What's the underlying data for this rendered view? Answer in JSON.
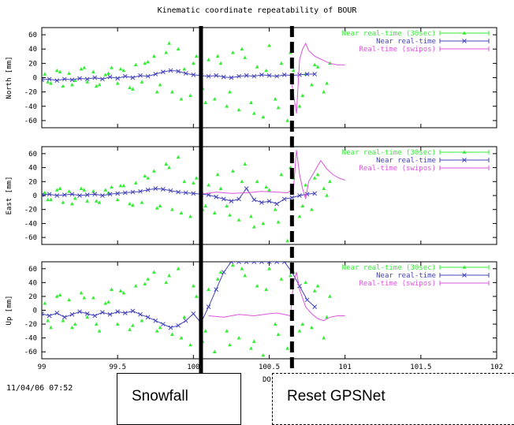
{
  "title": "Kinematic coordinate repeatability of BOUR",
  "timestamp": "11/04/06 07:52",
  "xaxis_label_fragment": "DO",
  "annotations": {
    "snowfall": "Snowfall",
    "reset": "Reset GPSNet"
  },
  "colors": {
    "near30": "#33ee33",
    "near": "#4444bb",
    "realtime": "#dd55dd",
    "event_line": "#000000"
  },
  "chart_data": [
    {
      "type": "line",
      "panel": "north",
      "ylabel": "North [mm]",
      "ylim": [
        -70,
        70
      ],
      "yticks": [
        60,
        40,
        20,
        0,
        -20,
        -40,
        -60
      ],
      "xlim": [
        99,
        102
      ],
      "xticks": [
        99,
        99.5,
        100,
        100.5,
        101,
        101.5,
        102
      ],
      "xtick_labels": [],
      "legend": [
        {
          "name": "Near real-time (30sec)",
          "key": "near30"
        },
        {
          "name": "Near real-time",
          "key": "near"
        },
        {
          "name": "Real-time (swipos)",
          "key": "realtime"
        }
      ],
      "events": [
        {
          "x": 100.05,
          "style": "solid"
        },
        {
          "x": 100.65,
          "style": "dashed"
        }
      ],
      "series": [
        {
          "name": "Near real-time (30sec)",
          "key": "near30",
          "kind": "points",
          "x": [
            99.02,
            99.06,
            99.1,
            99.14,
            99.18,
            99.22,
            99.26,
            99.3,
            99.34,
            99.38,
            99.42,
            99.46,
            99.5,
            99.54,
            99.58,
            99.62,
            99.66,
            99.7,
            99.74,
            99.78,
            99.82,
            99.86,
            99.9,
            99.94,
            99.98,
            100.02,
            100.06,
            100.1,
            100.14,
            100.18,
            100.22,
            100.26,
            100.3,
            100.34,
            100.38,
            100.42,
            100.46,
            100.5,
            100.54,
            100.58,
            100.62,
            100.66,
            100.7,
            100.74,
            100.78,
            100.82,
            100.86,
            100.9,
            99.04,
            99.12,
            99.2,
            99.28,
            99.36,
            99.44,
            99.52,
            99.6,
            99.68,
            99.76,
            99.84,
            99.92,
            100.0,
            100.08,
            100.16,
            100.24,
            100.32,
            100.4,
            100.48,
            100.56,
            100.64,
            100.72,
            100.8,
            100.88
          ],
          "y": [
            5,
            -8,
            10,
            -12,
            6,
            -4,
            12,
            -6,
            8,
            -10,
            4,
            14,
            -8,
            10,
            -14,
            18,
            -6,
            22,
            30,
            -10,
            35,
            -20,
            40,
            12,
            -25,
            30,
            -15,
            25,
            -30,
            20,
            -40,
            35,
            -45,
            28,
            -35,
            15,
            -55,
            45,
            -30,
            20,
            -60,
            10,
            -40,
            5,
            -10,
            15,
            -20,
            20,
            -6,
            8,
            -10,
            14,
            -12,
            6,
            12,
            -16,
            20,
            -20,
            48,
            -30,
            20,
            -35,
            30,
            -20,
            40,
            -50,
            10,
            -42,
            35,
            -25,
            18,
            -8
          ]
        },
        {
          "name": "Near real-time",
          "key": "near",
          "kind": "line",
          "x": [
            99,
            99.05,
            99.1,
            99.15,
            99.2,
            99.25,
            99.3,
            99.35,
            99.4,
            99.45,
            99.5,
            99.55,
            99.6,
            99.65,
            99.7,
            99.75,
            99.8,
            99.85,
            99.9,
            99.95,
            100,
            100.05,
            100.1,
            100.15,
            100.2,
            100.25,
            100.3,
            100.35,
            100.4,
            100.45,
            100.5,
            100.55,
            100.6,
            100.65,
            100.7,
            100.75,
            100.8
          ],
          "y": [
            -3,
            -2,
            -4,
            -2,
            -3,
            -1,
            -2,
            0,
            -2,
            1,
            -1,
            2,
            0,
            3,
            2,
            5,
            8,
            10,
            9,
            6,
            4,
            3,
            2,
            3,
            1,
            0,
            2,
            3,
            2,
            4,
            3,
            2,
            4,
            3,
            4,
            5,
            5
          ]
        },
        {
          "name": "Real-time (swipos)",
          "key": "realtime",
          "kind": "line",
          "x": [
            100.65,
            100.68,
            100.7,
            100.72,
            100.74,
            100.76,
            100.8,
            100.85,
            100.9,
            100.95,
            101.0
          ],
          "y": [
            -10,
            -50,
            25,
            40,
            48,
            38,
            30,
            25,
            20,
            18,
            18
          ]
        }
      ]
    },
    {
      "type": "line",
      "panel": "east",
      "ylabel": "East [mm]",
      "ylim": [
        -70,
        70
      ],
      "yticks": [
        60,
        40,
        20,
        0,
        -20,
        -40,
        -60
      ],
      "xlim": [
        99,
        102
      ],
      "xticks": [
        99,
        99.5,
        100,
        100.5,
        101,
        101.5,
        102
      ],
      "xtick_labels": [],
      "legend": [
        {
          "name": "Near real-time (30sec)",
          "key": "near30"
        },
        {
          "name": "Near real-time",
          "key": "near"
        },
        {
          "name": "Real-time (swipos)",
          "key": "realtime"
        }
      ],
      "events": [
        {
          "x": 100.05,
          "style": "solid"
        },
        {
          "x": 100.65,
          "style": "dashed"
        }
      ],
      "series": [
        {
          "name": "Near real-time (30sec)",
          "key": "near30",
          "kind": "points",
          "x": [
            99.02,
            99.06,
            99.1,
            99.14,
            99.18,
            99.22,
            99.26,
            99.3,
            99.34,
            99.38,
            99.42,
            99.46,
            99.5,
            99.54,
            99.58,
            99.62,
            99.66,
            99.7,
            99.74,
            99.78,
            99.82,
            99.86,
            99.9,
            99.94,
            99.98,
            100.02,
            100.06,
            100.1,
            100.14,
            100.18,
            100.22,
            100.26,
            100.3,
            100.34,
            100.38,
            100.42,
            100.46,
            100.5,
            100.54,
            100.58,
            100.62,
            100.66,
            100.7,
            100.74,
            100.78,
            100.82,
            100.86,
            100.9,
            99.04,
            99.12,
            99.2,
            99.28,
            99.36,
            99.44,
            99.52,
            99.6,
            99.68,
            99.76,
            99.84,
            99.92,
            100.0,
            100.08,
            100.16,
            100.24,
            100.32,
            100.4,
            100.48,
            100.56,
            100.64,
            100.72,
            100.8,
            100.88
          ],
          "y": [
            4,
            -6,
            8,
            -10,
            6,
            -4,
            10,
            -8,
            6,
            -10,
            8,
            12,
            -6,
            14,
            -12,
            18,
            -10,
            25,
            35,
            -15,
            45,
            -20,
            55,
            20,
            -30,
            25,
            -20,
            15,
            -25,
            10,
            -15,
            35,
            -35,
            45,
            -30,
            20,
            -40,
            8,
            -20,
            30,
            -65,
            25,
            -30,
            15,
            -20,
            30,
            10,
            20,
            -6,
            10,
            -12,
            8,
            -8,
            4,
            14,
            -14,
            28,
            -18,
            40,
            -25,
            18,
            -15,
            30,
            -28,
            20,
            -45,
            12,
            -38,
            40,
            -15,
            25,
            0
          ]
        },
        {
          "name": "Near real-time",
          "key": "near",
          "kind": "line",
          "x": [
            99,
            99.05,
            99.1,
            99.15,
            99.2,
            99.25,
            99.3,
            99.35,
            99.4,
            99.45,
            99.5,
            99.55,
            99.6,
            99.65,
            99.7,
            99.75,
            99.8,
            99.85,
            99.9,
            99.95,
            100,
            100.05,
            100.1,
            100.15,
            100.2,
            100.25,
            100.3,
            100.35,
            100.4,
            100.45,
            100.5,
            100.55,
            100.6,
            100.65,
            100.7,
            100.75,
            100.8
          ],
          "y": [
            1,
            2,
            0,
            1,
            2,
            0,
            1,
            2,
            0,
            2,
            3,
            4,
            5,
            6,
            8,
            10,
            9,
            7,
            5,
            4,
            3,
            2,
            1,
            -2,
            -5,
            -8,
            -5,
            10,
            -6,
            -10,
            -8,
            -12,
            -5,
            -3,
            0,
            2,
            3
          ]
        },
        {
          "name": "Real-time (swipos)",
          "key": "realtime",
          "kind": "line",
          "x": [
            100.05,
            100.15,
            100.25,
            100.35,
            100.45,
            100.55,
            100.62,
            100.66,
            100.68,
            100.7,
            100.72,
            100.74,
            100.76,
            100.8,
            100.84,
            100.88,
            100.92,
            100.96,
            101.0
          ],
          "y": [
            2,
            5,
            3,
            4,
            6,
            5,
            4,
            10,
            65,
            30,
            10,
            -5,
            20,
            35,
            50,
            38,
            30,
            25,
            22
          ]
        }
      ]
    },
    {
      "type": "line",
      "panel": "up",
      "ylabel": "Up [mm]",
      "ylim": [
        -70,
        70
      ],
      "yticks": [
        60,
        40,
        20,
        0,
        -20,
        -40,
        -60
      ],
      "xlim": [
        99,
        102
      ],
      "xticks": [
        99,
        99.5,
        100,
        100.5,
        101,
        101.5,
        102
      ],
      "xtick_labels": [
        "99",
        "99.5",
        "100",
        "100.5",
        "101",
        "101.5",
        "102"
      ],
      "legend": [
        {
          "name": "Near real-time (30sec)",
          "key": "near30"
        },
        {
          "name": "Near real-time",
          "key": "near"
        },
        {
          "name": "Real-time (swipos)",
          "key": "realtime"
        }
      ],
      "events": [
        {
          "x": 100.05,
          "style": "solid"
        },
        {
          "x": 100.65,
          "style": "dashed"
        }
      ],
      "series": [
        {
          "name": "Near real-time (30sec)",
          "key": "near30",
          "kind": "points",
          "x": [
            99.02,
            99.06,
            99.1,
            99.14,
            99.18,
            99.22,
            99.26,
            99.3,
            99.34,
            99.38,
            99.42,
            99.46,
            99.5,
            99.54,
            99.58,
            99.62,
            99.66,
            99.7,
            99.74,
            99.78,
            99.82,
            99.86,
            99.9,
            99.94,
            99.98,
            100.02,
            100.06,
            100.1,
            100.14,
            100.18,
            100.22,
            100.26,
            100.3,
            100.34,
            100.38,
            100.42,
            100.46,
            100.5,
            100.54,
            100.58,
            100.62,
            100.66,
            100.7,
            100.74,
            100.78,
            100.82,
            100.86,
            100.9,
            99.04,
            99.12,
            99.2,
            99.28,
            99.36,
            99.44,
            99.52,
            99.6,
            99.68,
            99.76,
            99.84,
            99.92,
            100.0,
            100.08,
            100.16,
            100.24,
            100.32,
            100.4,
            100.48,
            100.56,
            100.64,
            100.72,
            100.8,
            100.88
          ],
          "y": [
            10,
            -25,
            20,
            -15,
            15,
            -20,
            25,
            -10,
            18,
            -30,
            10,
            30,
            -20,
            25,
            -28,
            35,
            -15,
            45,
            55,
            -25,
            40,
            -35,
            60,
            -10,
            -50,
            20,
            -45,
            30,
            -60,
            55,
            -30,
            65,
            -40,
            50,
            -55,
            35,
            -65,
            60,
            -20,
            45,
            -55,
            55,
            -30,
            40,
            -25,
            35,
            -40,
            20,
            -15,
            22,
            -25,
            18,
            -20,
            12,
            28,
            -22,
            38,
            -30,
            50,
            -40,
            35,
            -30,
            45,
            -50,
            60,
            -45,
            30,
            -35,
            50,
            -20,
            28,
            -10
          ]
        },
        {
          "name": "Near real-time",
          "key": "near",
          "kind": "line",
          "x": [
            99,
            99.05,
            99.1,
            99.15,
            99.2,
            99.25,
            99.3,
            99.35,
            99.4,
            99.45,
            99.5,
            99.55,
            99.6,
            99.65,
            99.7,
            99.75,
            99.8,
            99.85,
            99.9,
            99.95,
            100,
            100.05,
            100.1,
            100.15,
            100.2,
            100.25,
            100.3,
            100.35,
            100.4,
            100.45,
            100.5,
            100.55,
            100.6,
            100.65,
            100.7,
            100.75,
            100.8
          ],
          "y": [
            -5,
            -8,
            -4,
            -10,
            -6,
            -2,
            -5,
            -8,
            -3,
            -6,
            -2,
            -4,
            -1,
            -6,
            -10,
            -15,
            -20,
            -25,
            -22,
            -15,
            -5,
            -18,
            5,
            30,
            55,
            70,
            70,
            70,
            70,
            70,
            70,
            70,
            70,
            55,
            35,
            15,
            5
          ]
        },
        {
          "name": "Real-time (swipos)",
          "key": "realtime",
          "kind": "line",
          "x": [
            100.1,
            100.2,
            100.3,
            100.4,
            100.5,
            100.55,
            100.6,
            100.64,
            100.66,
            100.68,
            100.7,
            100.74,
            100.78,
            100.82,
            100.86,
            100.9,
            100.95,
            101.0
          ],
          "y": [
            -8,
            -10,
            -6,
            -8,
            -5,
            -4,
            -6,
            -8,
            40,
            55,
            30,
            5,
            -5,
            -12,
            -15,
            -10,
            -8,
            -8
          ]
        }
      ]
    }
  ]
}
